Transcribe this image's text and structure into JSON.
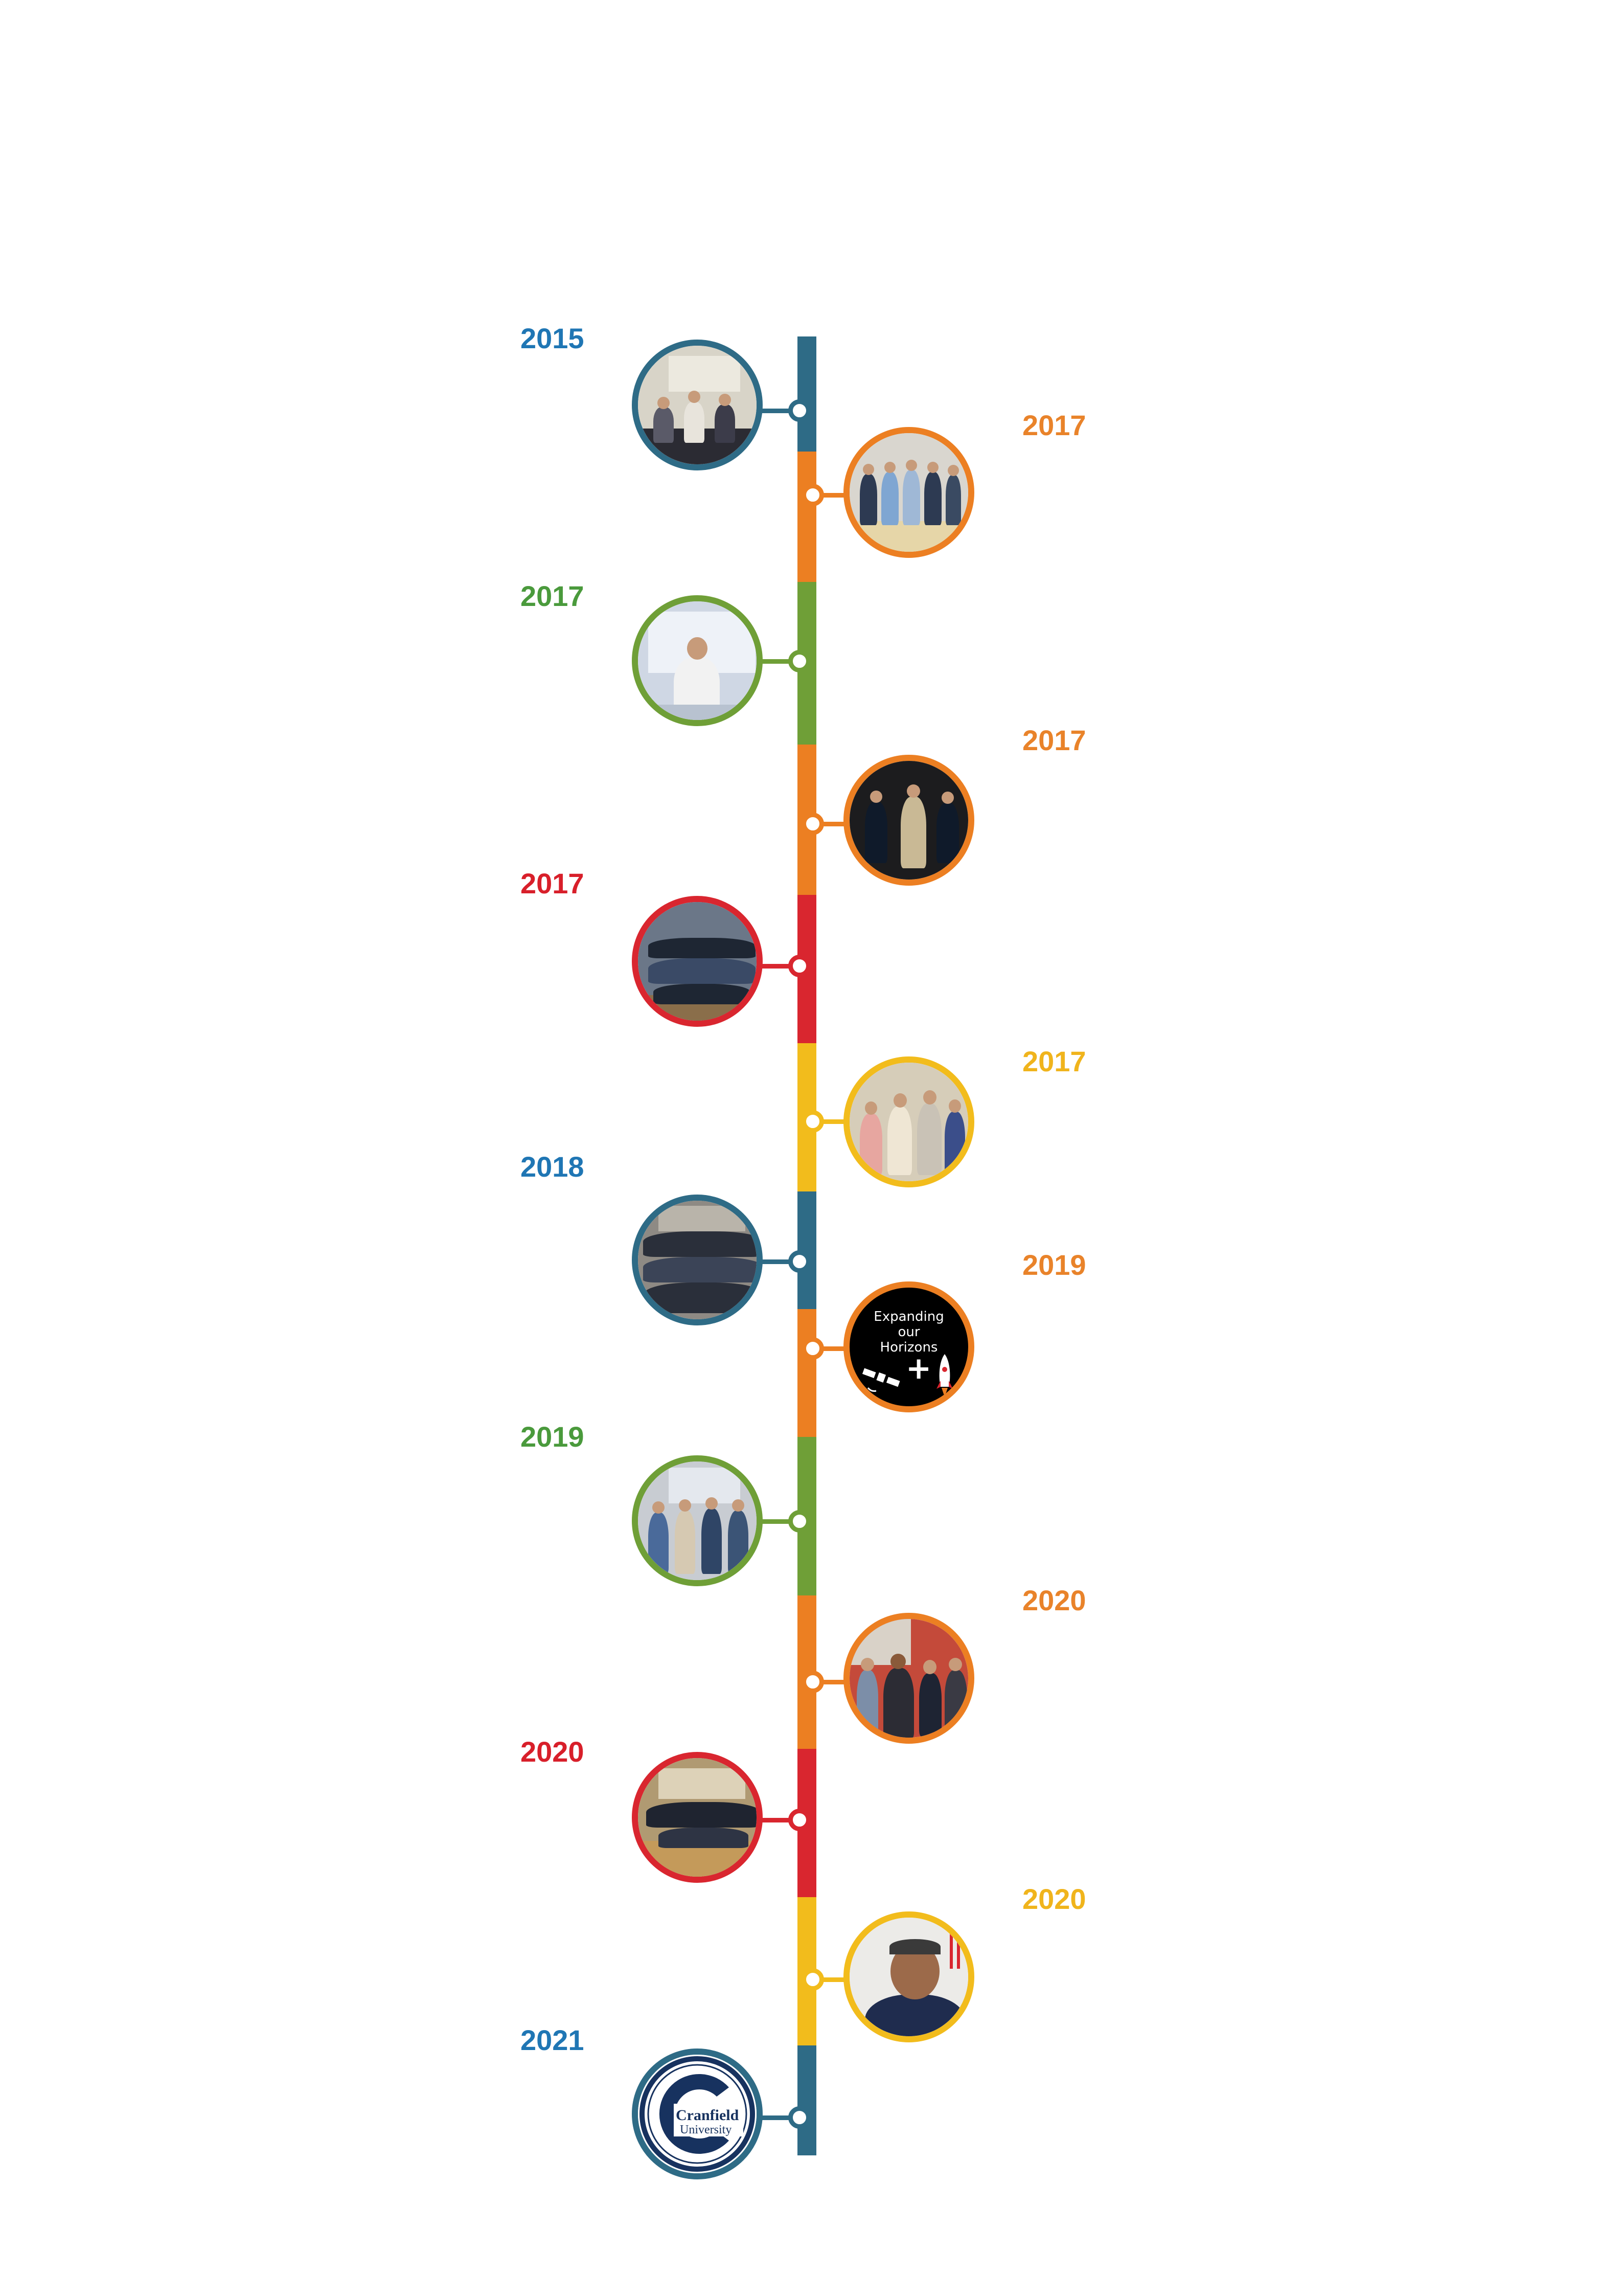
{
  "colors": {
    "blue": "#2e6b86",
    "orange": "#ec7f22",
    "green": "#6f9f37",
    "red": "#d9262f",
    "yellow": "#f2bc1c",
    "year_blue": "#1f76b4",
    "year_orange": "#e9832a",
    "year_green": "#4a9a3c",
    "year_red": "#d81f2a",
    "year_yellow": "#f0b41c"
  },
  "timeline": {
    "events": [
      {
        "year": "2015",
        "side": "left",
        "color": "blue",
        "image": "group-photo-conference-table"
      },
      {
        "year": "2017",
        "side": "right",
        "color": "orange",
        "image": "group-photo-meeting-room"
      },
      {
        "year": "2017",
        "side": "left",
        "color": "green",
        "image": "presenter-with-slide"
      },
      {
        "year": "2017",
        "side": "right",
        "color": "orange",
        "image": "group-photo-dark-room"
      },
      {
        "year": "2017",
        "side": "left",
        "color": "red",
        "image": "large-group-photo-classroom"
      },
      {
        "year": "2017",
        "side": "right",
        "color": "yellow",
        "image": "group-photo-four-people"
      },
      {
        "year": "2018",
        "side": "left",
        "color": "blue",
        "image": "auditorium-crowd-photo"
      },
      {
        "year": "2019",
        "side": "right",
        "color": "orange",
        "image": "expanding-our-horizons-poster"
      },
      {
        "year": "2019",
        "side": "left",
        "color": "green",
        "image": "award-presentation-photo"
      },
      {
        "year": "2020",
        "side": "right",
        "color": "orange",
        "image": "group-selfie-with-guest"
      },
      {
        "year": "2020",
        "side": "left",
        "color": "red",
        "image": "group-photo-seminar-hall"
      },
      {
        "year": "2020",
        "side": "right",
        "color": "yellow",
        "image": "portrait-smiling-man"
      },
      {
        "year": "2021",
        "side": "left",
        "color": "blue",
        "image": "cranfield-university-logo"
      }
    ]
  },
  "poster": {
    "line1": "Expanding",
    "line2": "our",
    "line3": "Horizons",
    "plus": "+"
  },
  "logo": {
    "line1": "Cranfield",
    "line2": "University"
  }
}
